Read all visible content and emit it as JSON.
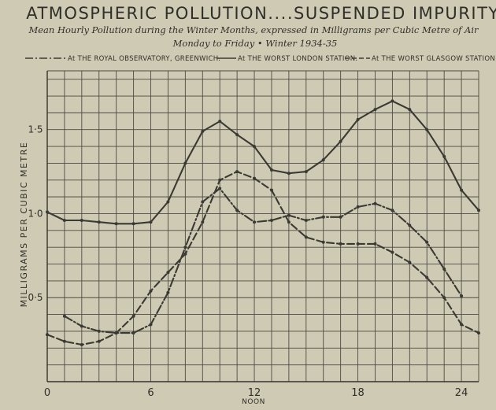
{
  "chart_data": {
    "type": "line",
    "title": "ATMOSPHERIC POLLUTION....SUSPENDED IMPURITY",
    "subtitle": "Mean Hourly Pollution during the Winter Months, expressed in Milligrams per Cubic Metre of Air",
    "subtitle2": "Monday to Friday • Winter 1934-35",
    "ylabel": "MILLIGRAMS PER CUBIC METRE",
    "xlabel": "NOON",
    "xlim": [
      0,
      25
    ],
    "ylim": [
      0,
      1.85
    ],
    "grid": true,
    "x_ticks": [
      {
        "value": 0,
        "label": "0"
      },
      {
        "value": 6,
        "label": "6"
      },
      {
        "value": 12,
        "label": "12"
      },
      {
        "value": 18,
        "label": "18"
      },
      {
        "value": 24,
        "label": "24"
      }
    ],
    "y_ticks": [
      {
        "value": 0.5,
        "label": "0·5"
      },
      {
        "value": 1.0,
        "label": "1·0"
      },
      {
        "value": 1.5,
        "label": "1·5"
      }
    ],
    "legend": [
      {
        "style": "dashdot",
        "label": "At THE ROYAL OBSERVATORY, GREENWICH."
      },
      {
        "style": "solid",
        "label": "At THE WORST LONDON STATION."
      },
      {
        "style": "dashed",
        "label": "At THE WORST GLASGOW STATION"
      }
    ],
    "series": [
      {
        "key": "worst_london",
        "style": "solid",
        "x": [
          0,
          1,
          2,
          3,
          4,
          5,
          6,
          7,
          8,
          9,
          10,
          11,
          12,
          13,
          14,
          15,
          16,
          17,
          18,
          19,
          20,
          21,
          22,
          23,
          24,
          25
        ],
        "values": [
          1.01,
          0.96,
          0.96,
          0.95,
          0.94,
          0.94,
          0.95,
          1.07,
          1.3,
          1.49,
          1.55,
          1.47,
          1.4,
          1.26,
          1.24,
          1.25,
          1.32,
          1.43,
          1.56,
          1.62,
          1.67,
          1.62,
          1.5,
          1.34,
          1.14,
          1.02
        ]
      },
      {
        "key": "worst_glasgow",
        "style": "dashed",
        "x": [
          0,
          1,
          2,
          3,
          4,
          5,
          6,
          7,
          8,
          9,
          10,
          11,
          12,
          13,
          14,
          15,
          16,
          17,
          18,
          19,
          20,
          21,
          22,
          23,
          24,
          25
        ],
        "values": [
          0.28,
          0.24,
          0.22,
          0.24,
          0.29,
          0.39,
          0.54,
          0.65,
          0.76,
          0.95,
          1.2,
          1.25,
          1.21,
          1.14,
          0.95,
          0.86,
          0.83,
          0.82,
          0.82,
          0.82,
          0.77,
          0.71,
          0.62,
          0.5,
          0.34,
          0.29
        ]
      },
      {
        "key": "greenwich",
        "style": "dashdot",
        "x": [
          1,
          2,
          3,
          4,
          5,
          6,
          7,
          8,
          9,
          10,
          11,
          12,
          13,
          14,
          15,
          16,
          17,
          18,
          19,
          20,
          21,
          22,
          23,
          24
        ],
        "values": [
          0.39,
          0.33,
          0.3,
          0.29,
          0.29,
          0.34,
          0.53,
          0.8,
          1.07,
          1.15,
          1.02,
          0.95,
          0.96,
          0.99,
          0.96,
          0.98,
          0.98,
          1.04,
          1.06,
          1.02,
          0.93,
          0.83,
          0.67,
          0.51
        ]
      }
    ]
  }
}
